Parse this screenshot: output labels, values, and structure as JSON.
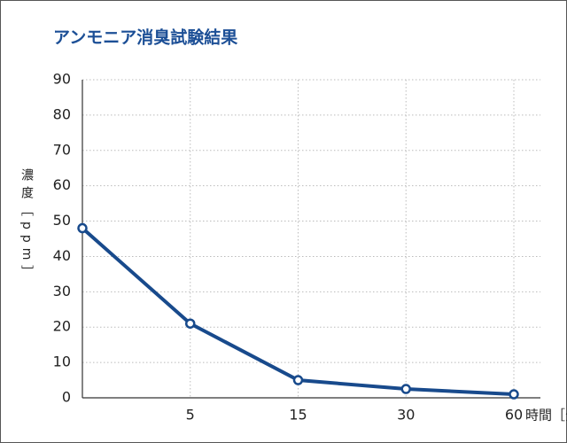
{
  "chart_data": {
    "type": "line",
    "title": "アンモニア消臭試験結果",
    "y_label": "濃度［ppm］",
    "x_label": "時間［分］",
    "categories": [
      null,
      "5",
      "15",
      "30",
      "60"
    ],
    "values": [
      48,
      21,
      5,
      2.5,
      1
    ],
    "color": "#184a8c",
    "ylim": [
      0,
      90
    ],
    "yticks": [
      0,
      10,
      20,
      30,
      40,
      50,
      60,
      70,
      80,
      90
    ],
    "grid": true
  }
}
